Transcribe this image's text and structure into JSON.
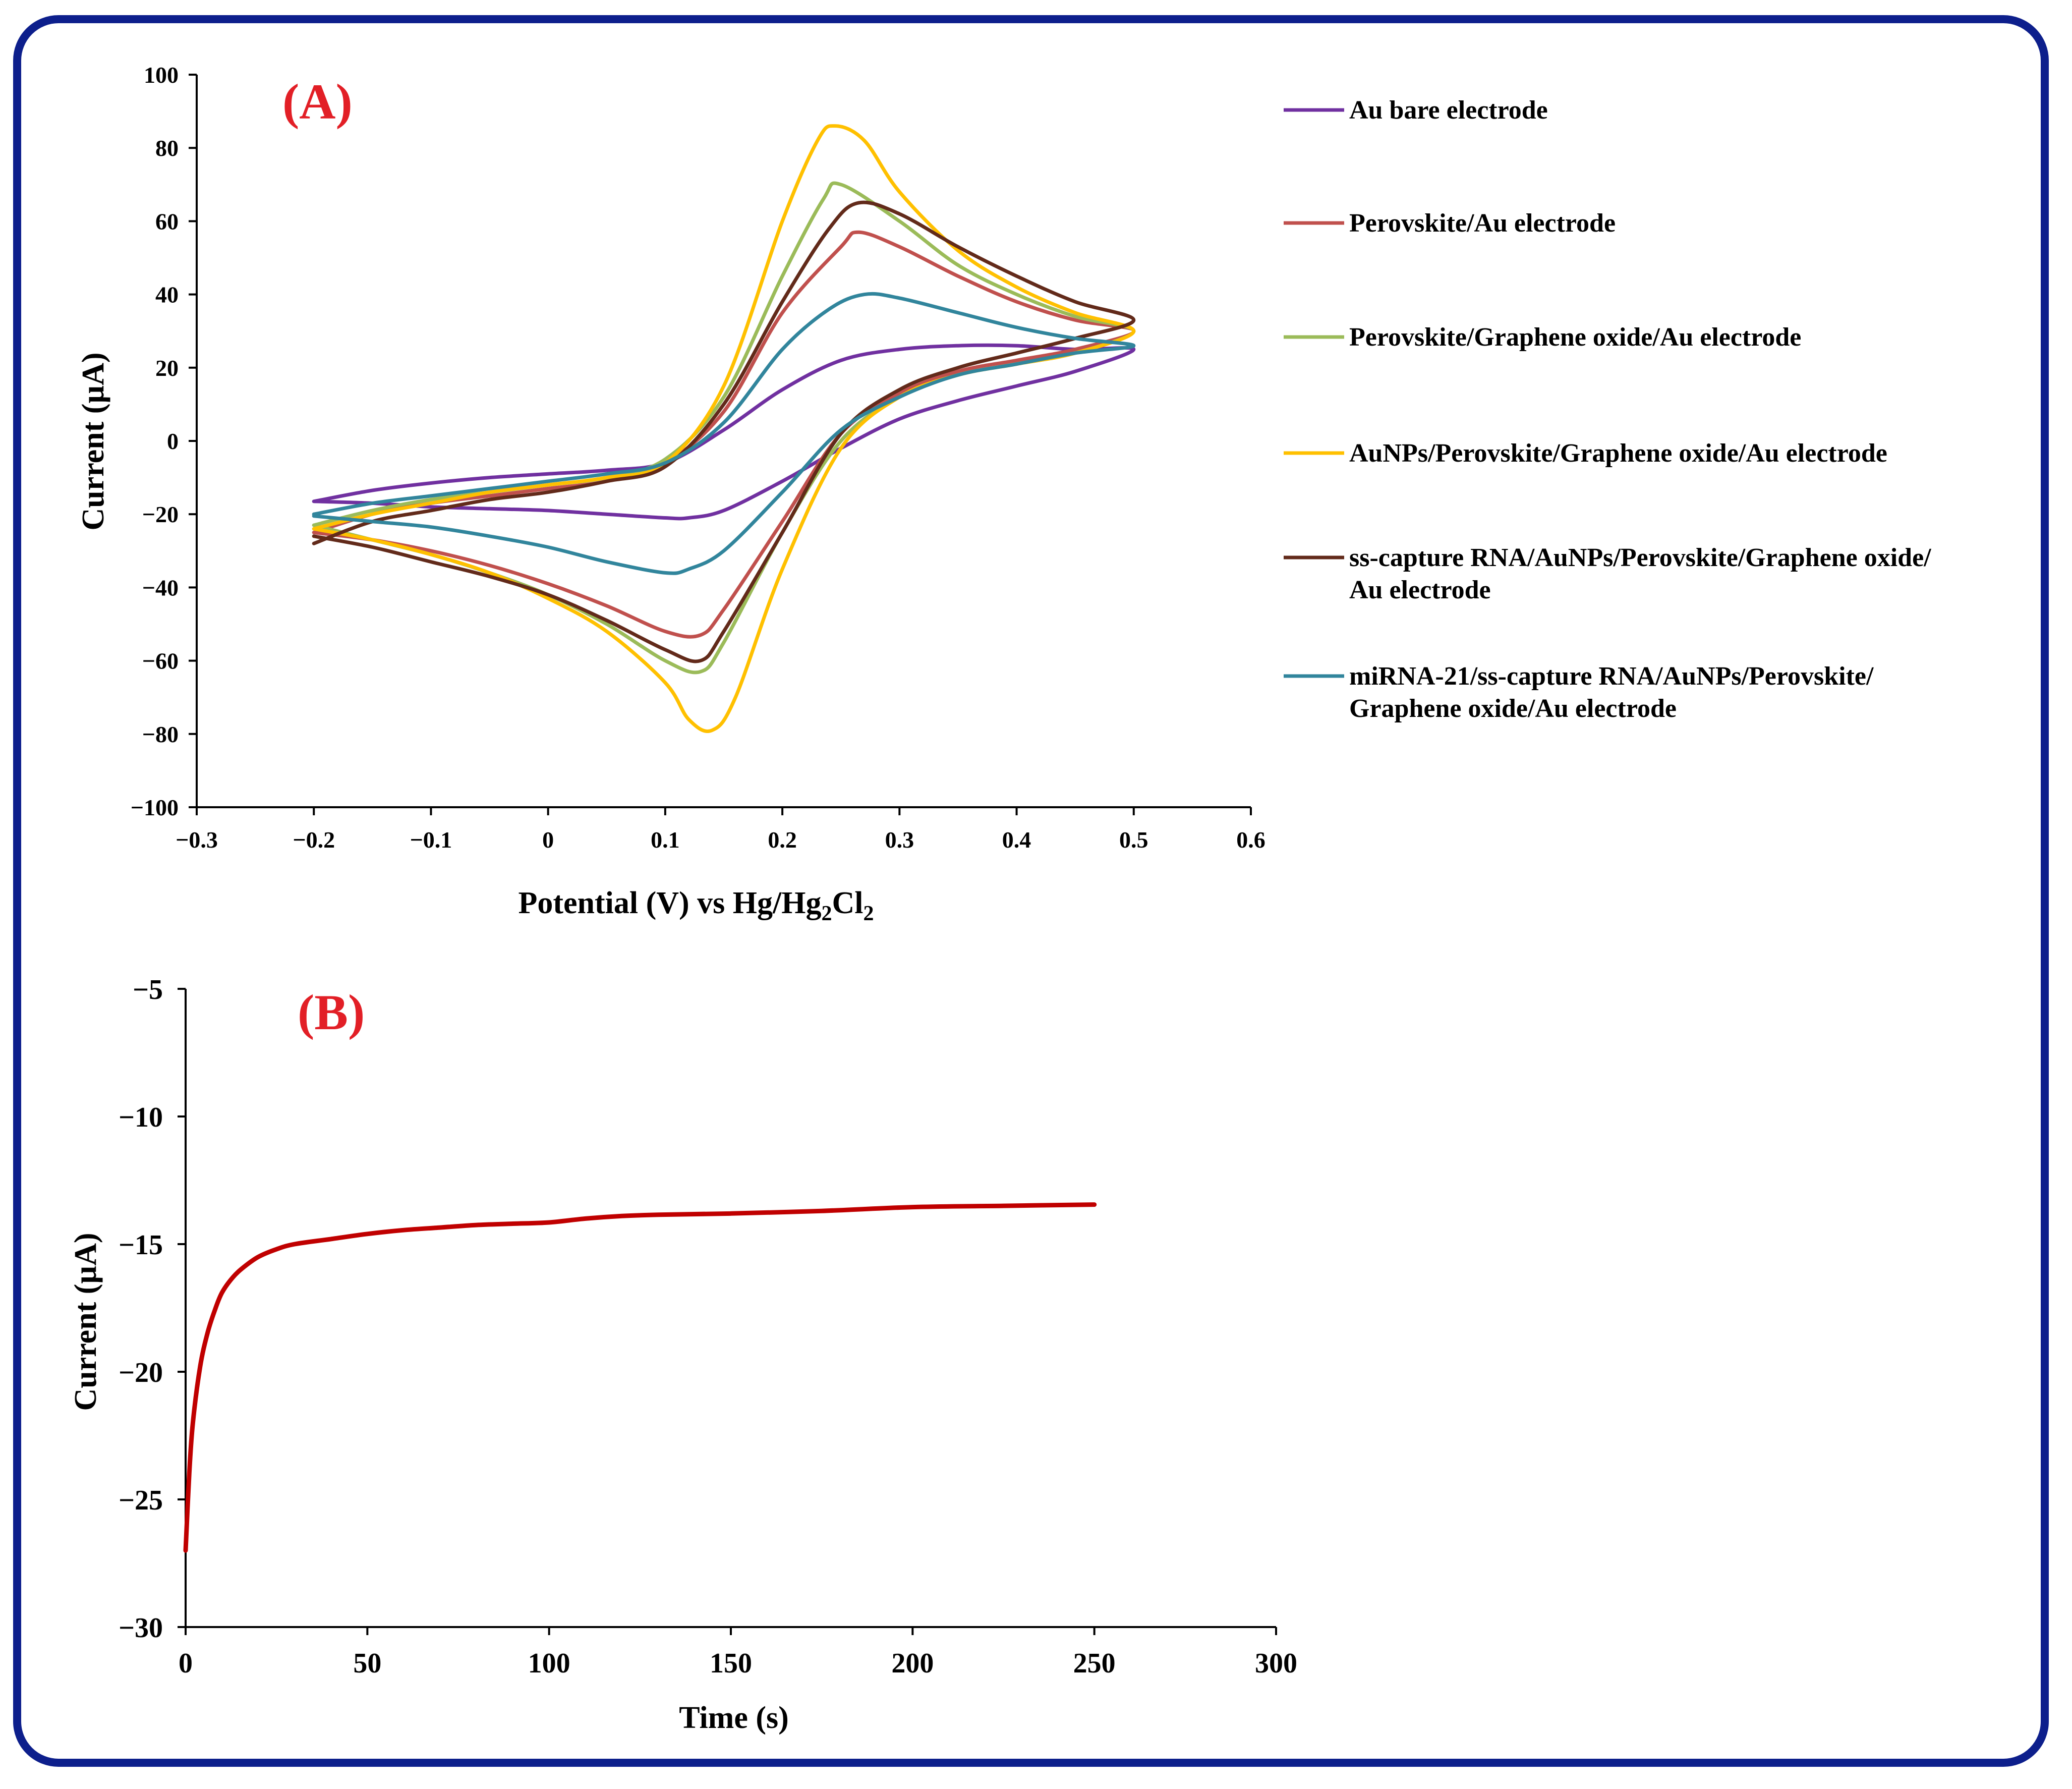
{
  "chart_data": [
    {
      "id": "A",
      "panel_label": "(A)",
      "type": "line",
      "title": "",
      "xlabel": "Potential (V) vs Hg/Hg",
      "xlabel_sub1": "2",
      "xlabel_mid": "Cl",
      "xlabel_sub2": "2",
      "ylabel": "Current (µA)",
      "xlim": [
        -0.3,
        0.6
      ],
      "ylim": [
        -100,
        100
      ],
      "xticks": [
        -0.3,
        -0.2,
        -0.1,
        0,
        0.1,
        0.2,
        0.3,
        0.4,
        0.5,
        0.6
      ],
      "xtick_labels": [
        "−0.3",
        "−0.2",
        "−0.1",
        "0",
        "0.1",
        "0.2",
        "0.3",
        "0.4",
        "0.5",
        "0.6"
      ],
      "yticks": [
        -100,
        -80,
        -60,
        -40,
        -20,
        0,
        20,
        40,
        60,
        80,
        100
      ],
      "ytick_labels": [
        "−100",
        "−80",
        "−60",
        "−40",
        "−20",
        "0",
        "20",
        "40",
        "60",
        "80",
        "100"
      ],
      "legend_position": "right",
      "series": [
        {
          "name": "Au bare electrode",
          "name_lines": [
            "Au bare electrode"
          ],
          "color": "#7030a0",
          "forward": [
            [
              -0.2,
              -16.5
            ],
            [
              -0.15,
              -13.5
            ],
            [
              -0.1,
              -11.5
            ],
            [
              -0.05,
              -10
            ],
            [
              0,
              -9
            ],
            [
              0.05,
              -8
            ],
            [
              0.1,
              -6
            ],
            [
              0.15,
              3
            ],
            [
              0.2,
              14
            ],
            [
              0.25,
              22
            ],
            [
              0.3,
              25
            ],
            [
              0.35,
              26
            ],
            [
              0.4,
              26
            ],
            [
              0.45,
              25
            ],
            [
              0.5,
              25
            ]
          ],
          "reverse": [
            [
              0.5,
              23.5
            ],
            [
              0.45,
              19
            ],
            [
              0.4,
              15
            ],
            [
              0.35,
              11
            ],
            [
              0.3,
              6
            ],
            [
              0.25,
              -2
            ],
            [
              0.2,
              -11
            ],
            [
              0.15,
              -19
            ],
            [
              0.12,
              -21
            ],
            [
              0.1,
              -21
            ],
            [
              0.05,
              -20
            ],
            [
              0,
              -19
            ],
            [
              -0.05,
              -18.5
            ],
            [
              -0.1,
              -18
            ],
            [
              -0.15,
              -17
            ],
            [
              -0.2,
              -16.5
            ]
          ]
        },
        {
          "name": "Perovskite/Au electrode",
          "name_lines": [
            "Perovskite/Au electrode"
          ],
          "color": "#c0504d",
          "forward": [
            [
              -0.2,
              -25
            ],
            [
              -0.15,
              -20
            ],
            [
              -0.1,
              -17
            ],
            [
              -0.05,
              -15
            ],
            [
              0,
              -13
            ],
            [
              0.05,
              -11
            ],
            [
              0.1,
              -6
            ],
            [
              0.15,
              8
            ],
            [
              0.2,
              35
            ],
            [
              0.25,
              53
            ],
            [
              0.265,
              57
            ],
            [
              0.3,
              53
            ],
            [
              0.35,
              45
            ],
            [
              0.4,
              38
            ],
            [
              0.45,
              33
            ],
            [
              0.5,
              30
            ]
          ],
          "reverse": [
            [
              0.5,
              27
            ],
            [
              0.45,
              25
            ],
            [
              0.4,
              22
            ],
            [
              0.35,
              19
            ],
            [
              0.3,
              13
            ],
            [
              0.25,
              2
            ],
            [
              0.2,
              -22
            ],
            [
              0.15,
              -46
            ],
            [
              0.13,
              -53
            ],
            [
              0.1,
              -52
            ],
            [
              0.05,
              -45
            ],
            [
              0,
              -39
            ],
            [
              -0.05,
              -34
            ],
            [
              -0.1,
              -30
            ],
            [
              -0.15,
              -27
            ],
            [
              -0.2,
              -25
            ]
          ]
        },
        {
          "name": "Perovskite/Graphene oxide/Au electrode",
          "name_lines": [
            "Perovskite/Graphene oxide/Au electrode"
          ],
          "color": "#9bbb59",
          "forward": [
            [
              -0.2,
              -23
            ],
            [
              -0.15,
              -19
            ],
            [
              -0.1,
              -16
            ],
            [
              -0.05,
              -14
            ],
            [
              0,
              -12
            ],
            [
              0.05,
              -10
            ],
            [
              0.1,
              -5
            ],
            [
              0.15,
              12
            ],
            [
              0.2,
              45
            ],
            [
              0.235,
              66
            ],
            [
              0.25,
              70
            ],
            [
              0.3,
              60
            ],
            [
              0.35,
              48
            ],
            [
              0.4,
              40
            ],
            [
              0.45,
              34
            ],
            [
              0.5,
              30
            ]
          ],
          "reverse": [
            [
              0.5,
              27
            ],
            [
              0.45,
              24
            ],
            [
              0.4,
              21
            ],
            [
              0.35,
              18
            ],
            [
              0.3,
              12
            ],
            [
              0.25,
              0
            ],
            [
              0.2,
              -25
            ],
            [
              0.15,
              -55
            ],
            [
              0.13,
              -63
            ],
            [
              0.1,
              -60
            ],
            [
              0.05,
              -50
            ],
            [
              0,
              -42
            ],
            [
              -0.05,
              -36
            ],
            [
              -0.1,
              -31
            ],
            [
              -0.15,
              -27
            ],
            [
              -0.2,
              -23
            ]
          ]
        },
        {
          "name": "AuNPs/Perovskite/Graphene oxide/Au electrode",
          "name_lines": [
            "AuNPs/Perovskite/Graphene oxide/Au electrode"
          ],
          "color": "#ffc000",
          "forward": [
            [
              -0.2,
              -24
            ],
            [
              -0.15,
              -20
            ],
            [
              -0.1,
              -17
            ],
            [
              -0.05,
              -14
            ],
            [
              0,
              -12
            ],
            [
              0.05,
              -10
            ],
            [
              0.1,
              -6
            ],
            [
              0.15,
              15
            ],
            [
              0.2,
              60
            ],
            [
              0.23,
              82
            ],
            [
              0.245,
              86
            ],
            [
              0.27,
              82
            ],
            [
              0.3,
              68
            ],
            [
              0.35,
              52
            ],
            [
              0.4,
              42
            ],
            [
              0.45,
              35
            ],
            [
              0.5,
              30
            ]
          ],
          "reverse": [
            [
              0.5,
              27
            ],
            [
              0.45,
              24
            ],
            [
              0.4,
              21
            ],
            [
              0.35,
              18
            ],
            [
              0.3,
              12
            ],
            [
              0.25,
              -2
            ],
            [
              0.2,
              -35
            ],
            [
              0.16,
              -70
            ],
            [
              0.14,
              -79
            ],
            [
              0.12,
              -76
            ],
            [
              0.1,
              -66
            ],
            [
              0.05,
              -52
            ],
            [
              0,
              -43
            ],
            [
              -0.05,
              -36
            ],
            [
              -0.1,
              -31
            ],
            [
              -0.15,
              -27
            ],
            [
              -0.2,
              -24
            ]
          ]
        },
        {
          "name": "ss-capture RNA/AuNPs/Perovskite/Graphene oxide/Au electrode",
          "name_lines": [
            "ss-capture RNA/AuNPs/Perovskite/Graphene oxide/",
            "Au electrode"
          ],
          "color": "#622a1a",
          "forward": [
            [
              -0.2,
              -28
            ],
            [
              -0.15,
              -22
            ],
            [
              -0.1,
              -19
            ],
            [
              -0.05,
              -16
            ],
            [
              0,
              -14
            ],
            [
              0.05,
              -11
            ],
            [
              0.1,
              -7
            ],
            [
              0.15,
              10
            ],
            [
              0.2,
              38
            ],
            [
              0.24,
              58
            ],
            [
              0.265,
              65
            ],
            [
              0.3,
              62
            ],
            [
              0.35,
              53
            ],
            [
              0.4,
              45
            ],
            [
              0.45,
              38
            ],
            [
              0.5,
              33
            ]
          ],
          "reverse": [
            [
              0.5,
              32
            ],
            [
              0.45,
              28
            ],
            [
              0.4,
              24
            ],
            [
              0.35,
              20
            ],
            [
              0.3,
              14
            ],
            [
              0.25,
              2
            ],
            [
              0.2,
              -25
            ],
            [
              0.15,
              -52
            ],
            [
              0.13,
              -60
            ],
            [
              0.1,
              -57
            ],
            [
              0.05,
              -49
            ],
            [
              0,
              -42
            ],
            [
              -0.05,
              -37
            ],
            [
              -0.1,
              -33
            ],
            [
              -0.15,
              -29
            ],
            [
              -0.2,
              -26
            ]
          ]
        },
        {
          "name": "miRNA-21/ss-capture RNA/AuNPs/Perovskite/Graphene oxide/Au electrode",
          "name_lines": [
            "miRNA-21/ss-capture RNA/AuNPs/Perovskite/",
            "Graphene oxide/Au electrode"
          ],
          "color": "#31859c",
          "forward": [
            [
              -0.2,
              -20
            ],
            [
              -0.15,
              -17
            ],
            [
              -0.1,
              -15
            ],
            [
              -0.05,
              -13
            ],
            [
              0,
              -11
            ],
            [
              0.05,
              -9
            ],
            [
              0.1,
              -6
            ],
            [
              0.15,
              5
            ],
            [
              0.2,
              25
            ],
            [
              0.24,
              36
            ],
            [
              0.27,
              40
            ],
            [
              0.3,
              39
            ],
            [
              0.35,
              35
            ],
            [
              0.4,
              31
            ],
            [
              0.45,
              28
            ],
            [
              0.5,
              26
            ]
          ],
          "reverse": [
            [
              0.5,
              26
            ],
            [
              0.45,
              24
            ],
            [
              0.4,
              21
            ],
            [
              0.35,
              18
            ],
            [
              0.3,
              12
            ],
            [
              0.25,
              3
            ],
            [
              0.2,
              -14
            ],
            [
              0.15,
              -30
            ],
            [
              0.12,
              -35
            ],
            [
              0.1,
              -36
            ],
            [
              0.05,
              -33
            ],
            [
              0,
              -29
            ],
            [
              -0.05,
              -26
            ],
            [
              -0.1,
              -23.5
            ],
            [
              -0.15,
              -22
            ],
            [
              -0.2,
              -20.5
            ]
          ]
        }
      ]
    },
    {
      "id": "B",
      "panel_label": "(B)",
      "type": "line",
      "title": "",
      "xlabel": "Time (s)",
      "ylabel": "Current (µA)",
      "xlim": [
        0,
        300
      ],
      "ylim": [
        -30,
        -5
      ],
      "xticks": [
        0,
        50,
        100,
        150,
        200,
        250,
        300
      ],
      "xtick_labels": [
        "0",
        "50",
        "100",
        "150",
        "200",
        "250",
        "300"
      ],
      "yticks": [
        -30,
        -25,
        -20,
        -15,
        -10,
        -5
      ],
      "ytick_labels": [
        "−30",
        "−25",
        "−20",
        "−15",
        "−10",
        "−5"
      ],
      "series": [
        {
          "name": "Current",
          "color": "#c00000",
          "points": [
            [
              0,
              -27
            ],
            [
              1,
              -24
            ],
            [
              2,
              -22
            ],
            [
              4,
              -19.8
            ],
            [
              6,
              -18.5
            ],
            [
              8,
              -17.6
            ],
            [
              10,
              -16.9
            ],
            [
              13,
              -16.3
            ],
            [
              16,
              -15.9
            ],
            [
              20,
              -15.5
            ],
            [
              25,
              -15.2
            ],
            [
              30,
              -15.0
            ],
            [
              40,
              -14.8
            ],
            [
              50,
              -14.6
            ],
            [
              60,
              -14.45
            ],
            [
              70,
              -14.35
            ],
            [
              80,
              -14.25
            ],
            [
              90,
              -14.2
            ],
            [
              100,
              -14.15
            ],
            [
              110,
              -14.0
            ],
            [
              120,
              -13.9
            ],
            [
              130,
              -13.85
            ],
            [
              150,
              -13.8
            ],
            [
              175,
              -13.7
            ],
            [
              200,
              -13.55
            ],
            [
              225,
              -13.5
            ],
            [
              250,
              -13.45
            ]
          ]
        }
      ]
    }
  ]
}
